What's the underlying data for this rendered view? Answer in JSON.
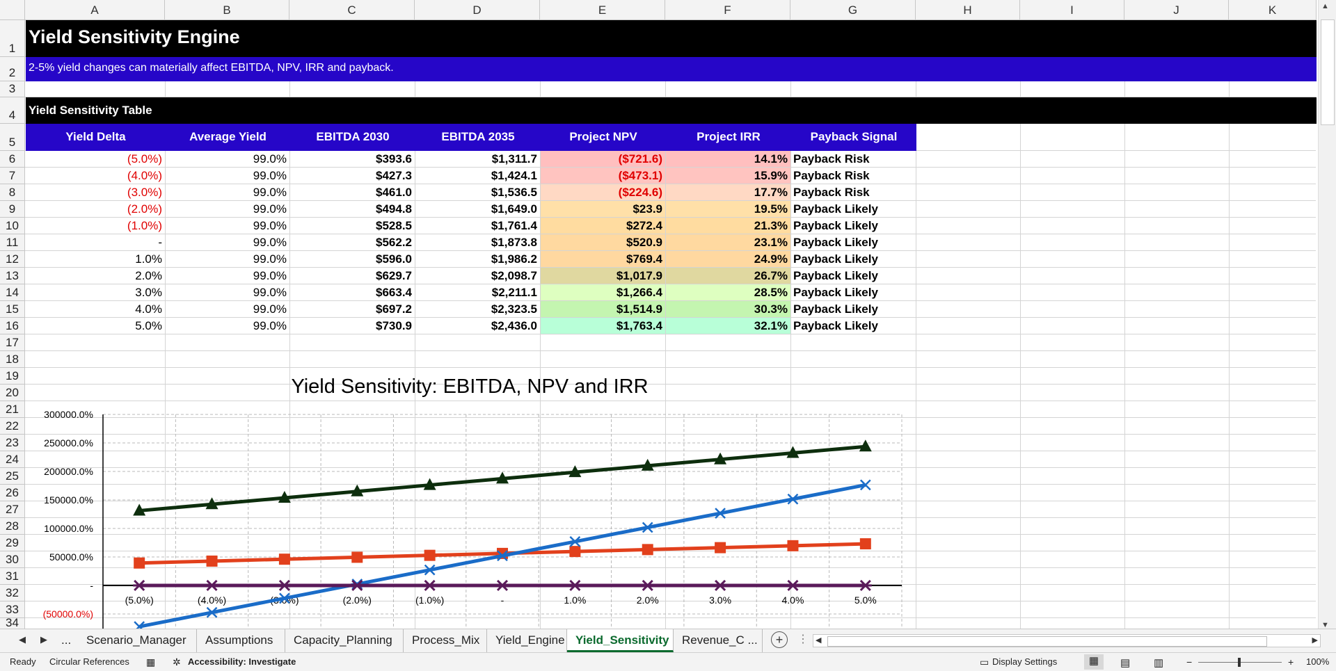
{
  "sheet": {
    "columns": [
      "A",
      "B",
      "C",
      "D",
      "E",
      "F",
      "G",
      "H",
      "I",
      "J",
      "K"
    ],
    "rows": [
      "1",
      "2",
      "3",
      "4",
      "5",
      "6",
      "7",
      "8",
      "9",
      "10",
      "11",
      "12",
      "13",
      "14",
      "15",
      "16",
      "17",
      "18",
      "19",
      "20",
      "21",
      "22",
      "23",
      "24",
      "25",
      "26",
      "27",
      "28",
      "29",
      "30",
      "31",
      "32",
      "33",
      "34"
    ]
  },
  "title": "Yield Sensitivity Engine",
  "subtitle": "2-5% yield changes can materially affect EBITDA, NPV, IRR and payback.",
  "section_title": "Yield Sensitivity Table",
  "table": {
    "headers": [
      "Yield Delta",
      "Average Yield",
      "EBITDA 2030",
      "EBITDA 2035",
      "Project NPV",
      "Project IRR",
      "Payback Signal"
    ],
    "rows": [
      [
        "(5.0%)",
        "99.0%",
        "$393.6",
        "$1,311.7",
        "($721.6)",
        "14.1%",
        "Payback Risk"
      ],
      [
        "(4.0%)",
        "99.0%",
        "$427.3",
        "$1,424.1",
        "($473.1)",
        "15.9%",
        "Payback Risk"
      ],
      [
        "(3.0%)",
        "99.0%",
        "$461.0",
        "$1,536.5",
        "($224.6)",
        "17.7%",
        "Payback Risk"
      ],
      [
        "(2.0%)",
        "99.0%",
        "$494.8",
        "$1,649.0",
        "$23.9",
        "19.5%",
        "Payback Likely"
      ],
      [
        "(1.0%)",
        "99.0%",
        "$528.5",
        "$1,761.4",
        "$272.4",
        "21.3%",
        "Payback Likely"
      ],
      [
        "-",
        "99.0%",
        "$562.2",
        "$1,873.8",
        "$520.9",
        "23.1%",
        "Payback Likely"
      ],
      [
        "1.0%",
        "99.0%",
        "$596.0",
        "$1,986.2",
        "$769.4",
        "24.9%",
        "Payback Likely"
      ],
      [
        "2.0%",
        "99.0%",
        "$629.7",
        "$2,098.7",
        "$1,017.9",
        "26.7%",
        "Payback Likely"
      ],
      [
        "3.0%",
        "99.0%",
        "$663.4",
        "$2,211.1",
        "$1,266.4",
        "28.5%",
        "Payback Likely"
      ],
      [
        "4.0%",
        "99.0%",
        "$697.2",
        "$2,323.5",
        "$1,514.9",
        "30.3%",
        "Payback Likely"
      ],
      [
        "5.0%",
        "99.0%",
        "$730.9",
        "$2,436.0",
        "$1,763.4",
        "32.1%",
        "Payback Likely"
      ]
    ],
    "npv_colors": [
      "#ffbfbf",
      "#ffc4c0",
      "#ffd9c4",
      "#ffe0a8",
      "#ffdca0",
      "#ffd9a0",
      "#ffd8a0",
      "#e0d8a0",
      "#deffc0",
      "#c4f5b0",
      "#b8ffd8"
    ]
  },
  "colors": {
    "title_bar": "#000000",
    "subtitle_bar": "#2606c8",
    "header_fill": "#2606c8",
    "negative": "#e00000",
    "active_tab": "#0b6a2e"
  },
  "chart_data": {
    "type": "line",
    "title": "Yield Sensitivity: EBITDA, NPV and IRR",
    "categories": [
      "(5.0%)",
      "(4.0%)",
      "(3.0%)",
      "(2.0%)",
      "(1.0%)",
      "-",
      "1.0%",
      "2.0%",
      "3.0%",
      "4.0%",
      "5.0%"
    ],
    "y_tick_labels": [
      "300000.0%",
      "250000.0%",
      "200000.0%",
      "150000.0%",
      "100000.0%",
      "50000.0%",
      "-",
      "(50000.0%)"
    ],
    "y_ticks": [
      3000,
      2500,
      2000,
      1500,
      1000,
      500,
      0,
      -500
    ],
    "ylim": [
      -600,
      3000
    ],
    "grid": true,
    "series": [
      {
        "values": [
          393.6,
          427.3,
          461.0,
          494.8,
          528.5,
          562.2,
          596.0,
          629.7,
          663.4,
          697.2,
          730.9
        ],
        "color": "#e2401c",
        "marker": "square"
      },
      {
        "values": [
          1311.7,
          1424.1,
          1536.5,
          1649.0,
          1761.4,
          1873.8,
          1986.2,
          2098.7,
          2211.1,
          2323.5,
          2436.0
        ],
        "color": "#0d2e0d",
        "marker": "triangle"
      },
      {
        "values": [
          -721.6,
          -473.1,
          -224.6,
          23.9,
          272.4,
          520.9,
          769.4,
          1017.9,
          1266.4,
          1514.9,
          1763.4
        ],
        "color": "#1a6cc8",
        "marker": "x"
      },
      {
        "values": [
          0.141,
          0.159,
          0.177,
          0.195,
          0.213,
          0.231,
          0.249,
          0.267,
          0.285,
          0.303,
          0.321
        ],
        "color": "#5a1a5a",
        "marker": "star"
      }
    ]
  },
  "tabs": {
    "nav": [
      "...",
      "Scenario_Manager",
      "Assumptions",
      "Capacity_Planning",
      "Process_Mix",
      "Yield_Engine",
      "Yield_Sensitivity",
      "Revenue_C ..."
    ],
    "active_index": 6
  },
  "status": {
    "ready": "Ready",
    "circular": "Circular References",
    "accessibility": "Accessibility: Investigate",
    "display_settings": "Display Settings",
    "zoom": "100%"
  },
  "icons": [
    "sheet-left-icon",
    "sheet-right-icon",
    "add-sheet-icon",
    "normal-view-icon",
    "page-layout-icon",
    "page-break-icon",
    "accessibility-icon",
    "macro-icon",
    "display-settings-icon"
  ]
}
